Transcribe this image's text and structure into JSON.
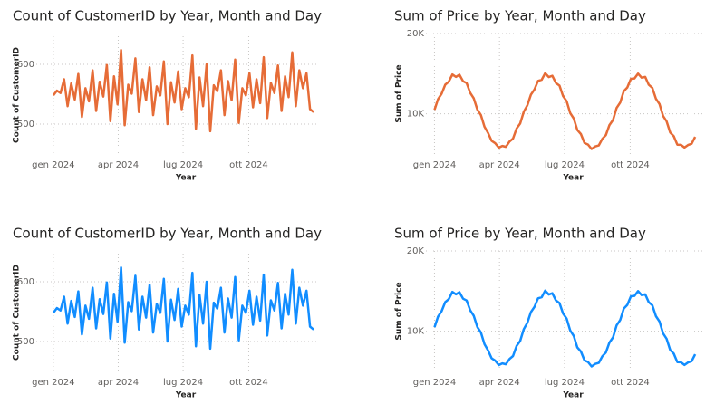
{
  "chart_data": [
    {
      "type": "line",
      "title": "Count of CustomerID by Year, Month and Day",
      "x_label": "Year",
      "y_label": "Count of CustomerID",
      "color": "#e66c37",
      "grid": true,
      "x": [
        0,
        5,
        10,
        15,
        20,
        25,
        30,
        35,
        40,
        45,
        50,
        55,
        60,
        65,
        70,
        75,
        80,
        85,
        90,
        95,
        100,
        105,
        110,
        115,
        120,
        125,
        130,
        135,
        140,
        145,
        150,
        155,
        160,
        165,
        170,
        175,
        180,
        185,
        190,
        195,
        200,
        205,
        210,
        215,
        220,
        225,
        230,
        235,
        240,
        245,
        250,
        255,
        260,
        265,
        270,
        275,
        280,
        285,
        290,
        295,
        300,
        305,
        310,
        315,
        320,
        325,
        330,
        335,
        340,
        345,
        350,
        355,
        360,
        365
      ],
      "values": [
        548,
        556,
        552,
        575,
        530,
        568,
        541,
        584,
        512,
        560,
        538,
        590,
        522,
        571,
        546,
        599,
        505,
        580,
        533,
        624,
        498,
        566,
        551,
        610,
        520,
        575,
        540,
        595,
        515,
        563,
        548,
        605,
        500,
        570,
        536,
        588,
        525,
        560,
        545,
        615,
        492,
        578,
        530,
        600,
        488,
        565,
        555,
        590,
        515,
        572,
        540,
        608,
        502,
        560,
        548,
        585,
        528,
        575,
        535,
        612,
        510,
        569,
        552,
        598,
        522,
        580,
        545,
        620,
        530,
        590,
        560,
        585,
        525,
        520
      ],
      "xlim": [
        -24,
        370
      ],
      "xticks": [
        {
          "value": 0,
          "label": "gen 2024"
        },
        {
          "value": 91,
          "label": "apr 2024"
        },
        {
          "value": 182,
          "label": "lug 2024"
        },
        {
          "value": 274,
          "label": "ott 2024"
        }
      ],
      "ylim": [
        450,
        647
      ],
      "yticks": [
        500,
        600
      ]
    },
    {
      "type": "line",
      "title": "Sum of Price by Year, Month and Day",
      "x_label": "Year",
      "y_label": "Sum of Price",
      "color": "#e66c37",
      "grid": true,
      "x": [
        0,
        5,
        10,
        15,
        20,
        25,
        30,
        35,
        40,
        45,
        50,
        55,
        60,
        65,
        70,
        75,
        80,
        85,
        90,
        95,
        100,
        105,
        110,
        115,
        120,
        125,
        130,
        135,
        140,
        145,
        150,
        155,
        160,
        165,
        170,
        175,
        180,
        185,
        190,
        195,
        200,
        205,
        210,
        215,
        220,
        225,
        230,
        235,
        240,
        245,
        250,
        255,
        260,
        265,
        270,
        275,
        280,
        285,
        290,
        295,
        300,
        305,
        310,
        315,
        320,
        325,
        330,
        335,
        340,
        345,
        350,
        355,
        360,
        365
      ],
      "values": [
        10500,
        11830,
        12500,
        13630,
        14000,
        14900,
        14600,
        14870,
        14060,
        13830,
        12600,
        11930,
        10540,
        9840,
        8390,
        7600,
        6630,
        6340,
        5790,
        6000,
        5890,
        6540,
        6920,
        8180,
        8790,
        10270,
        11060,
        12400,
        13040,
        14100,
        14240,
        15060,
        14580,
        14730,
        13840,
        13520,
        12220,
        11580,
        10100,
        9420,
        7980,
        7480,
        6360,
        6170,
        5620,
        5940,
        6060,
        6900,
        7360,
        8600,
        9240,
        10730,
        11410,
        12820,
        13280,
        14360,
        14410,
        15000,
        14510,
        14600,
        13620,
        13240,
        11880,
        11220,
        9740,
        9060,
        7670,
        7210,
        6160,
        6140,
        5800,
        6120,
        6280,
        7130
      ],
      "xlim": [
        -12,
        375
      ],
      "xticks": [
        {
          "value": 0,
          "label": "gen 2024"
        },
        {
          "value": 91,
          "label": "apr 2024"
        },
        {
          "value": 182,
          "label": "lug 2024"
        },
        {
          "value": 274,
          "label": "ott 2024"
        }
      ],
      "ylim": [
        5000,
        20000
      ],
      "yticks": [
        {
          "value": 10000,
          "label": "10K"
        },
        {
          "value": 20000,
          "label": "20K"
        }
      ]
    },
    {
      "type": "line",
      "title": "Count of CustomerID by Year, Month and Day",
      "x_label": "Year",
      "y_label": "Count of CustomerID",
      "color": "#118dff",
      "grid": true,
      "x": [
        0,
        5,
        10,
        15,
        20,
        25,
        30,
        35,
        40,
        45,
        50,
        55,
        60,
        65,
        70,
        75,
        80,
        85,
        90,
        95,
        100,
        105,
        110,
        115,
        120,
        125,
        130,
        135,
        140,
        145,
        150,
        155,
        160,
        165,
        170,
        175,
        180,
        185,
        190,
        195,
        200,
        205,
        210,
        215,
        220,
        225,
        230,
        235,
        240,
        245,
        250,
        255,
        260,
        265,
        270,
        275,
        280,
        285,
        290,
        295,
        300,
        305,
        310,
        315,
        320,
        325,
        330,
        335,
        340,
        345,
        350,
        355,
        360,
        365
      ],
      "values": [
        548,
        556,
        552,
        575,
        530,
        568,
        541,
        584,
        512,
        560,
        538,
        590,
        522,
        571,
        546,
        599,
        505,
        580,
        533,
        624,
        498,
        566,
        551,
        610,
        520,
        575,
        540,
        595,
        515,
        563,
        548,
        605,
        500,
        570,
        536,
        588,
        525,
        560,
        545,
        615,
        492,
        578,
        530,
        600,
        488,
        565,
        555,
        590,
        515,
        572,
        540,
        608,
        502,
        560,
        548,
        585,
        528,
        575,
        535,
        612,
        510,
        569,
        552,
        598,
        522,
        580,
        545,
        620,
        530,
        590,
        560,
        585,
        525,
        520
      ],
      "xlim": [
        -24,
        370
      ],
      "xticks": [
        {
          "value": 0,
          "label": "gen 2024"
        },
        {
          "value": 91,
          "label": "apr 2024"
        },
        {
          "value": 182,
          "label": "lug 2024"
        },
        {
          "value": 274,
          "label": "ott 2024"
        }
      ],
      "ylim": [
        450,
        647
      ],
      "yticks": [
        500,
        600
      ]
    },
    {
      "type": "line",
      "title": "Sum of Price by Year, Month and Day",
      "x_label": "Year",
      "y_label": "Sum of Price",
      "color": "#118dff",
      "grid": true,
      "x": [
        0,
        5,
        10,
        15,
        20,
        25,
        30,
        35,
        40,
        45,
        50,
        55,
        60,
        65,
        70,
        75,
        80,
        85,
        90,
        95,
        100,
        105,
        110,
        115,
        120,
        125,
        130,
        135,
        140,
        145,
        150,
        155,
        160,
        165,
        170,
        175,
        180,
        185,
        190,
        195,
        200,
        205,
        210,
        215,
        220,
        225,
        230,
        235,
        240,
        245,
        250,
        255,
        260,
        265,
        270,
        275,
        280,
        285,
        290,
        295,
        300,
        305,
        310,
        315,
        320,
        325,
        330,
        335,
        340,
        345,
        350,
        355,
        360,
        365
      ],
      "values": [
        10500,
        11830,
        12500,
        13630,
        14000,
        14900,
        14600,
        14870,
        14060,
        13830,
        12600,
        11930,
        10540,
        9840,
        8390,
        7600,
        6630,
        6340,
        5790,
        6000,
        5890,
        6540,
        6920,
        8180,
        8790,
        10270,
        11060,
        12400,
        13040,
        14100,
        14240,
        15060,
        14580,
        14730,
        13840,
        13520,
        12220,
        11580,
        10100,
        9420,
        7980,
        7480,
        6360,
        6170,
        5620,
        5940,
        6060,
        6900,
        7360,
        8600,
        9240,
        10730,
        11410,
        12820,
        13280,
        14360,
        14410,
        15000,
        14510,
        14600,
        13620,
        13240,
        11880,
        11220,
        9740,
        9060,
        7670,
        7210,
        6160,
        6140,
        5800,
        6120,
        6280,
        7130
      ],
      "xlim": [
        -12,
        375
      ],
      "xticks": [
        {
          "value": 0,
          "label": "gen 2024"
        },
        {
          "value": 91,
          "label": "apr 2024"
        },
        {
          "value": 182,
          "label": "lug 2024"
        },
        {
          "value": 274,
          "label": "ott 2024"
        }
      ],
      "ylim": [
        5000,
        20000
      ],
      "yticks": [
        {
          "value": 10000,
          "label": "10K"
        },
        {
          "value": 20000,
          "label": "20K"
        }
      ]
    }
  ]
}
